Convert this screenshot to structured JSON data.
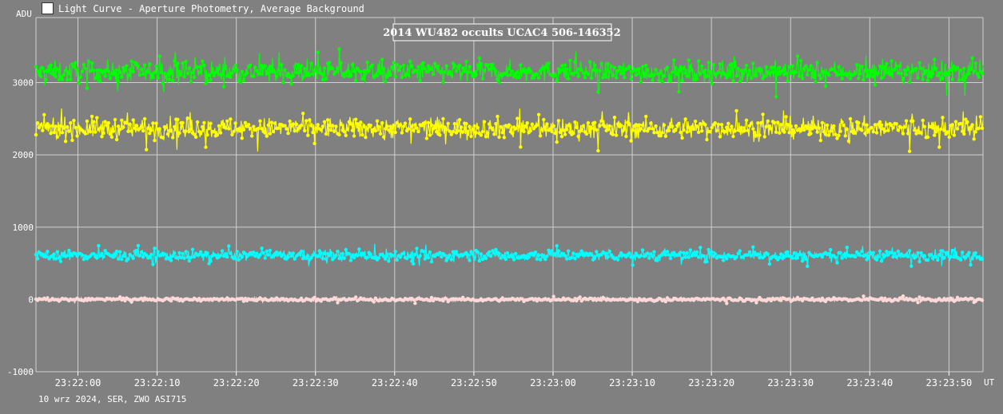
{
  "window": {
    "title": "Light Curve - Aperture Photometry, Average Background",
    "icon": "light-curve-app-icon"
  },
  "footer": {
    "caption": "10 wrz 2024, SER, ZWO ASI715"
  },
  "colors": {
    "background": "#808080",
    "grid": "#d0d0d0",
    "axis_text": "#ffffff"
  },
  "chart_data": {
    "type": "scatter",
    "title": "2014 WU482 occults UCAC4 506-146352",
    "ylabel": "ADU",
    "xlabel": "UT",
    "ylim": [
      -1000,
      3900
    ],
    "yticks": [
      -1000,
      0,
      1000,
      2000,
      3000
    ],
    "ytick_labels": [
      "-1000",
      "0",
      "1000",
      "2000",
      "3000"
    ],
    "xticks": [
      "23:22:00",
      "23:22:10",
      "23:22:20",
      "23:22:30",
      "23:22:40",
      "23:22:50",
      "23:23:00",
      "23:23:10",
      "23:23:20",
      "23:23:30",
      "23:23:40",
      "23:23:50"
    ],
    "xlim": [
      "23:21:54.7",
      "23:23:54.3"
    ],
    "grid": true,
    "series": [
      {
        "color": "#00ff00",
        "mean": 3150,
        "noise": 130,
        "min": 2700,
        "max": 3600
      },
      {
        "color": "#ffff00",
        "mean": 2370,
        "noise": 130,
        "min": 1950,
        "max": 2800
      },
      {
        "color": "#00ffff",
        "mean": 610,
        "noise": 65,
        "min": 380,
        "max": 900
      },
      {
        "color": "#ffd8d8",
        "mean": 0,
        "noise": 22,
        "min": -80,
        "max": 140
      }
    ]
  }
}
